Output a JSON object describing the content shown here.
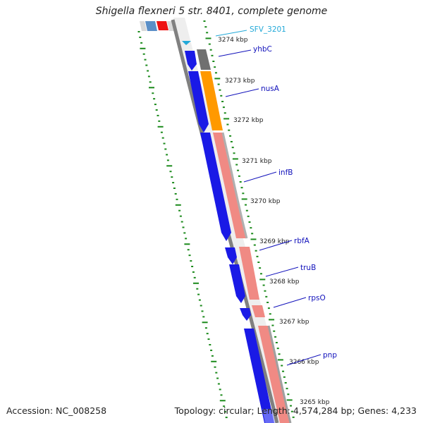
{
  "title": "Shigella flexneri 5 str. 8401, complete genome",
  "accession": "Accession: NC_008258",
  "summary": "Topology: circular; Length: 4,574,284 bp; Genes: 4,233",
  "kbp_ticks": [
    "3274 kbp",
    "3273 kbp",
    "3272 kbp",
    "3271 kbp",
    "3270 kbp",
    "3269 kbp",
    "3268 kbp",
    "3267 kbp",
    "3266 kbp",
    "3265 kbp"
  ],
  "genes": [
    {
      "name": "SFV_3201",
      "color": "#22a9d8"
    },
    {
      "name": "yhbC",
      "color": "#1111bb"
    },
    {
      "name": "nusA",
      "color": "#1111bb"
    },
    {
      "name": "infB",
      "color": "#1111bb"
    },
    {
      "name": "rbfA",
      "color": "#1111bb"
    },
    {
      "name": "truB",
      "color": "#1111bb"
    },
    {
      "name": "rpsO",
      "color": "#1111bb"
    },
    {
      "name": "pnp",
      "color": "#1111bb"
    }
  ],
  "colors": {
    "cds_forward": "#1a1ae6",
    "cds_reverse_salmon": "#f08a84",
    "cds_orange": "#ff9900",
    "cds_gray": "#707070",
    "backbone": "#808080",
    "gc_ticks": "#1b8a1b",
    "top_blue": "#5b8fc7",
    "top_red": "#ee1111"
  }
}
